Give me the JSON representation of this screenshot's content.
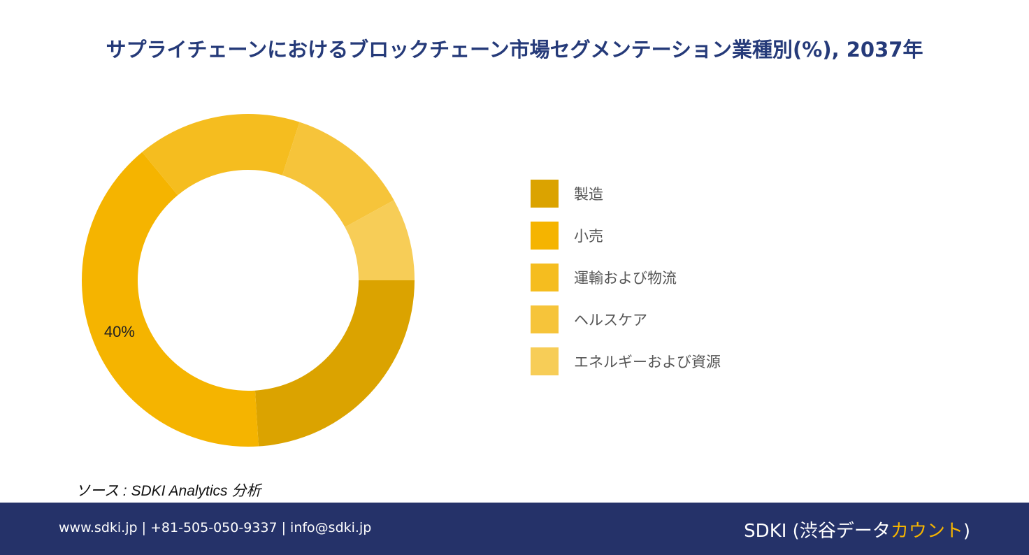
{
  "title": "サプライチェーンにおけるブロックチェーン市場セグメンテーション業種別(%), 2037年",
  "chart_data": {
    "type": "pie",
    "donut": true,
    "categories": [
      "製造",
      "小売",
      "運輸および物流",
      "ヘルスケア",
      "エネルギーおよび資源"
    ],
    "values": [
      24,
      40,
      16,
      12,
      8
    ],
    "colors": [
      "#dba300",
      "#f5b400",
      "#f5bd1f",
      "#f6c43a",
      "#f7cd57"
    ],
    "data_labels": [
      "",
      "40%",
      "",
      "",
      ""
    ],
    "legend_position": "right"
  },
  "source": "ソース : SDKI Analytics 分析",
  "footer": {
    "contact": "www.sdki.jp | +81-505-050-9337 | info@sdki.jp",
    "brand_prefix": "SDKI (渋谷データ",
    "brand_accent": "カウント",
    "brand_suffix": ")"
  }
}
